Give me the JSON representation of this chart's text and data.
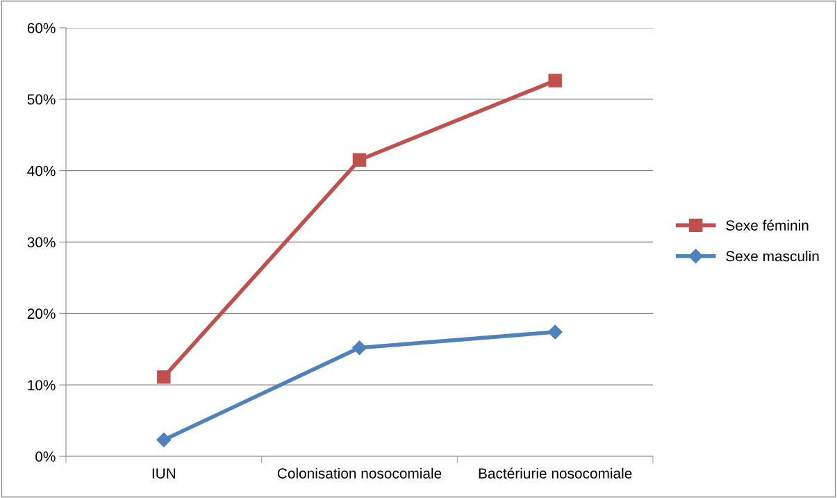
{
  "chart_data": {
    "type": "line",
    "categories": [
      "IUN",
      "Colonisation nosocomiale",
      "Bactériurie nosocomiale"
    ],
    "series": [
      {
        "name": "Sexe féminin",
        "color": "#c0504d",
        "marker": "square",
        "values": [
          11.1,
          41.5,
          52.6
        ]
      },
      {
        "name": "Sexe masculin",
        "color": "#4f81bd",
        "marker": "diamond",
        "values": [
          2.3,
          15.2,
          17.4
        ]
      }
    ],
    "ylim": [
      0,
      60
    ],
    "yticks": [
      {
        "value": 0,
        "label": "0%"
      },
      {
        "value": 10,
        "label": "10%"
      },
      {
        "value": 20,
        "label": "20%"
      },
      {
        "value": 30,
        "label": "30%"
      },
      {
        "value": 40,
        "label": "40%"
      },
      {
        "value": 50,
        "label": "50%"
      },
      {
        "value": 60,
        "label": "60%"
      }
    ],
    "grid": "y",
    "legend": "right",
    "line_style": "solid"
  }
}
